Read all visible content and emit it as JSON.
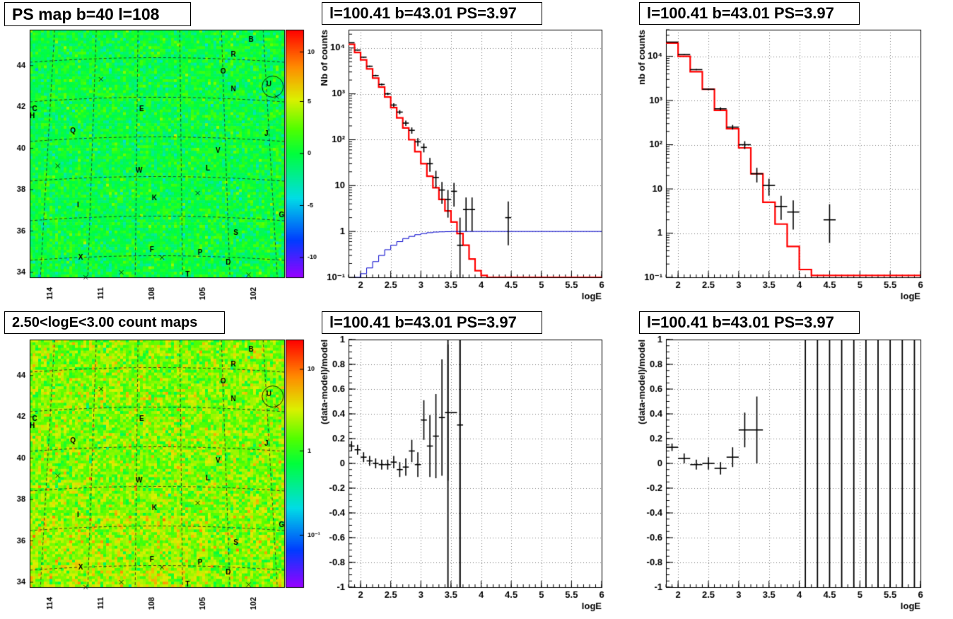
{
  "titles": {
    "map_top": "PS map b=40 l=108",
    "spec_lin": "l=100.41 b=43.01 PS=3.97",
    "spec_rebin": "l=100.41 b=43.01 PS=3.97",
    "map_bottom": "2.50<logE<3.00 count maps",
    "resid_lin": "l=100.41 b=43.01 PS=3.97",
    "resid_rebin": "l=100.41 b=43.01 PS=3.97"
  },
  "colors": {
    "model_line": "#ff0000",
    "efficiency_line": "#0000cc",
    "data_points": "#000000",
    "grid": "#000000"
  },
  "maps": {
    "lat_ticks": [
      "34",
      "36",
      "38",
      "40",
      "42",
      "44"
    ],
    "lon_ticks": [
      "114",
      "111",
      "108",
      "105",
      "102"
    ],
    "source_labels": [
      "B",
      "R",
      "O",
      "N",
      "U",
      "C",
      "H",
      "E",
      "Q",
      "J",
      "V",
      "W",
      "L",
      "I",
      "K",
      "G",
      "S",
      "F",
      "P",
      "X",
      "D",
      "T"
    ],
    "crosses_count": 8,
    "top_colorbar_labels": [
      "10",
      "5",
      "0",
      "-5",
      "-10"
    ],
    "bottom_colorbar_labels": [
      "10",
      "1",
      "10⁻¹"
    ]
  },
  "chart_data": [
    {
      "type": "line",
      "name": "spec_lin",
      "xlabel": "logE",
      "ylabel": "Nb of counts",
      "xlim": [
        1.8,
        6.0
      ],
      "ylim": [
        0.1,
        25000
      ],
      "yscale": "log",
      "grid": true,
      "x_ticks": [
        "2",
        "2.5",
        "3",
        "3.5",
        "4",
        "4.5",
        "5",
        "5.5",
        "6"
      ],
      "y_ticks": [
        "10⁻¹",
        "1",
        "10",
        "10²",
        "10³",
        "10⁴"
      ],
      "series": [
        {
          "kind": "model_step",
          "edges": [
            1.8,
            1.9,
            2.0,
            2.1,
            2.2,
            2.3,
            2.4,
            2.5,
            2.6,
            2.7,
            2.8,
            2.9,
            3.0,
            3.1,
            3.2,
            3.3,
            3.4,
            3.5,
            3.6,
            3.7,
            3.8,
            3.9,
            4.0,
            4.1,
            6.0
          ],
          "values": [
            12000,
            8000,
            5500,
            3500,
            2200,
            1400,
            850,
            500,
            300,
            180,
            100,
            55,
            30,
            16,
            9,
            5,
            2.8,
            1.6,
            0.9,
            0.5,
            0.25,
            0.14,
            0.11,
            0.1
          ]
        },
        {
          "kind": "efficiency_step",
          "edges": [
            1.9,
            2.0,
            2.1,
            2.2,
            2.3,
            2.4,
            2.5,
            2.6,
            2.7,
            2.8,
            2.9,
            3.0,
            3.1,
            3.2,
            3.3,
            3.4,
            3.5,
            3.6,
            6.0
          ],
          "values": [
            0.1,
            0.12,
            0.16,
            0.22,
            0.3,
            0.4,
            0.5,
            0.6,
            0.7,
            0.78,
            0.85,
            0.9,
            0.94,
            0.97,
            0.98,
            0.99,
            1.0,
            1.0
          ],
          "start_x": 1.9
        },
        {
          "kind": "points",
          "x": [
            1.85,
            1.95,
            2.05,
            2.15,
            2.25,
            2.35,
            2.45,
            2.55,
            2.65,
            2.75,
            2.85,
            2.95,
            3.05,
            3.15,
            3.25,
            3.35,
            3.45,
            3.55,
            3.65,
            3.75,
            3.85,
            4.45
          ],
          "y": [
            13000,
            9000,
            6300,
            4000,
            2500,
            1600,
            1000,
            570,
            400,
            230,
            160,
            90,
            68,
            30,
            15,
            8,
            5,
            7.5,
            0.5,
            3,
            3,
            2
          ],
          "yerr_lo": [
            200,
            180,
            150,
            120,
            100,
            80,
            60,
            50,
            40,
            30,
            25,
            18,
            15,
            10,
            6,
            4,
            3,
            4,
            0.4,
            2.0,
            2.0,
            1.5
          ],
          "yerr_hi": [
            200,
            180,
            150,
            120,
            100,
            80,
            60,
            50,
            40,
            30,
            25,
            18,
            15,
            10,
            6,
            4,
            3,
            4,
            1.5,
            2.5,
            2.5,
            2.5
          ],
          "xerr": 0.05
        }
      ]
    },
    {
      "type": "line",
      "name": "spec_rebin",
      "xlabel": "logE",
      "ylabel": "nb of counts",
      "xlim": [
        1.8,
        6.0
      ],
      "ylim": [
        0.1,
        40000
      ],
      "yscale": "log",
      "grid": true,
      "x_ticks": [
        "2",
        "2.5",
        "3",
        "3.5",
        "4",
        "4.5",
        "5",
        "5.5",
        "6"
      ],
      "y_ticks": [
        "10⁻¹",
        "1",
        "10",
        "10²",
        "10³",
        "10⁴"
      ],
      "series": [
        {
          "kind": "model_step",
          "edges": [
            1.8,
            2.0,
            2.2,
            2.4,
            2.6,
            2.8,
            3.0,
            3.2,
            3.4,
            3.6,
            3.8,
            4.0,
            4.2,
            6.0
          ],
          "values": [
            20000,
            10000,
            4500,
            1800,
            600,
            230,
            85,
            22,
            5,
            1.6,
            0.5,
            0.15,
            0.11
          ],
          "start_x": 1.8
        },
        {
          "kind": "points",
          "x": [
            1.9,
            2.1,
            2.3,
            2.5,
            2.7,
            2.9,
            3.1,
            3.3,
            3.5,
            3.7,
            3.9,
            4.5
          ],
          "y": [
            21000,
            11000,
            5000,
            1800,
            650,
            250,
            100,
            22,
            12,
            4,
            3,
            2
          ],
          "yerr_lo": [
            300,
            200,
            150,
            80,
            50,
            30,
            20,
            8,
            5,
            2,
            1.8,
            1.4
          ],
          "yerr_hi": [
            300,
            200,
            150,
            80,
            50,
            30,
            20,
            8,
            5,
            3,
            2.5,
            2.5
          ],
          "xerr": 0.1
        }
      ]
    },
    {
      "type": "scatter",
      "name": "resid_lin",
      "xlabel": "logE",
      "ylabel": "(data-model)/model",
      "xlim": [
        1.8,
        6.0
      ],
      "ylim": [
        -1,
        1
      ],
      "grid": true,
      "x_ticks": [
        "2",
        "2.5",
        "3",
        "3.5",
        "4",
        "4.5",
        "5",
        "5.5",
        "6"
      ],
      "y_ticks": [
        "-1",
        "-0.8",
        "-0.6",
        "-0.4",
        "-0.2",
        "0",
        "0.2",
        "0.4",
        "0.6",
        "0.8",
        "1"
      ],
      "series": [
        {
          "kind": "points",
          "x": [
            1.85,
            1.95,
            2.05,
            2.15,
            2.25,
            2.35,
            2.45,
            2.55,
            2.65,
            2.75,
            2.85,
            2.95,
            3.05,
            3.15,
            3.25,
            3.35,
            3.45,
            3.55,
            3.65
          ],
          "y": [
            0.14,
            0.11,
            0.05,
            0.02,
            0,
            -0.01,
            -0.01,
            0.01,
            -0.05,
            -0.03,
            0.1,
            -0.01,
            0.35,
            0.14,
            0.22,
            0.37,
            0.41,
            0.41,
            0.31
          ],
          "yerr": [
            0.04,
            0.04,
            0.04,
            0.04,
            0.04,
            0.04,
            0.04,
            0.05,
            0.06,
            0.07,
            0.09,
            0.1,
            0.16,
            0.25,
            0.34,
            0.47,
            0.55,
            0.0,
            1.35
          ],
          "xerr": 0.05,
          "full_lines_x": [
            3.45,
            3.65
          ]
        }
      ]
    },
    {
      "type": "scatter",
      "name": "resid_rebin",
      "xlabel": "logE",
      "ylabel": "(data-model)/model",
      "xlim": [
        1.8,
        6.0
      ],
      "ylim": [
        -1,
        1
      ],
      "grid": true,
      "x_ticks": [
        "2",
        "2.5",
        "3",
        "3.5",
        "4",
        "4.5",
        "5",
        "5.5",
        "6"
      ],
      "y_ticks": [
        "-1",
        "-0.8",
        "-0.6",
        "-0.4",
        "-0.2",
        "0",
        "0.2",
        "0.4",
        "0.6",
        "0.8",
        "1"
      ],
      "series": [
        {
          "kind": "points",
          "x": [
            1.9,
            2.1,
            2.3,
            2.5,
            2.7,
            2.9,
            3.1,
            3.3
          ],
          "y": [
            0.13,
            0.04,
            -0.01,
            0.0,
            -0.04,
            0.05,
            0.27,
            0.27
          ],
          "yerr": [
            0.03,
            0.04,
            0.04,
            0.05,
            0.05,
            0.08,
            0.14,
            0.27
          ],
          "xerr": 0.1,
          "full_lines_x": [
            4.1,
            4.3,
            4.5,
            4.7,
            4.9,
            5.1,
            5.3,
            5.5,
            5.7,
            5.9
          ]
        }
      ]
    }
  ]
}
